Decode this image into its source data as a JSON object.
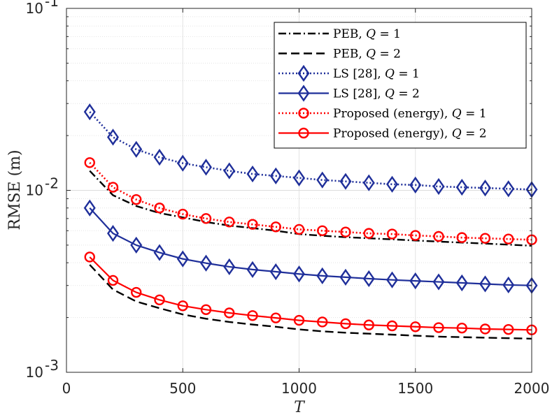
{
  "chart_data": {
    "type": "line",
    "yscale": "log",
    "xlabel": "T",
    "ylabel": "RMSE (m)",
    "xlim": [
      0,
      2000
    ],
    "ylim": [
      0.001,
      0.1
    ],
    "grid": true,
    "legend_position": "top-right",
    "x_ticks": [
      {
        "value": 0,
        "label": "0"
      },
      {
        "value": 500,
        "label": "500"
      },
      {
        "value": 1000,
        "label": "1000"
      },
      {
        "value": 1500,
        "label": "1500"
      },
      {
        "value": 2000,
        "label": "2000"
      }
    ],
    "y_ticks": [
      {
        "value": 0.001,
        "base": "10",
        "exp": "-3"
      },
      {
        "value": 0.01,
        "base": "10",
        "exp": "-2"
      },
      {
        "value": 0.1,
        "base": "10",
        "exp": "-1"
      }
    ],
    "x": [
      100,
      200,
      300,
      400,
      500,
      600,
      700,
      800,
      900,
      1000,
      1100,
      1200,
      1300,
      1400,
      1500,
      1600,
      1700,
      1800,
      1900,
      2000
    ],
    "series": [
      {
        "name": "PEB, Q = 1",
        "label_main": "PEB, ",
        "label_q": "Q",
        "label_tail": " = 1",
        "color": "#000000",
        "dash": "11,4,2,4",
        "width": 2.4,
        "marker": "none",
        "values": [
          0.0128,
          0.0094,
          0.0082,
          0.0075,
          0.0071,
          0.0067,
          0.0064,
          0.0062,
          0.006,
          0.00575,
          0.00563,
          0.00553,
          0.00545,
          0.00538,
          0.0053,
          0.00523,
          0.00516,
          0.0051,
          0.00503,
          0.00496
        ]
      },
      {
        "name": "PEB, Q = 2",
        "label_main": "PEB, ",
        "label_q": "Q",
        "label_tail": " = 2",
        "color": "#000000",
        "dash": "12,6",
        "width": 2.4,
        "marker": "none",
        "values": [
          0.0039,
          0.00285,
          0.00245,
          0.00225,
          0.00208,
          0.00197,
          0.00189,
          0.00183,
          0.00178,
          0.00172,
          0.00168,
          0.00165,
          0.00163,
          0.00161,
          0.00159,
          0.00157,
          0.00156,
          0.00155,
          0.00154,
          0.00153
        ]
      },
      {
        "name": "LS [28], Q = 1",
        "label_main": "LS [28], ",
        "label_q": "Q",
        "label_tail": " = 1",
        "color": "#1f2f9a",
        "dash": "2,3",
        "width": 2.6,
        "marker": "diamond",
        "values": [
          0.027,
          0.0196,
          0.0168,
          0.0152,
          0.0141,
          0.0134,
          0.0128,
          0.0123,
          0.012,
          0.0117,
          0.0114,
          0.0112,
          0.011,
          0.0108,
          0.0107,
          0.0105,
          0.0104,
          0.0103,
          0.0102,
          0.0101
        ]
      },
      {
        "name": "LS [28], Q = 2",
        "label_main": "LS [28], ",
        "label_q": "Q",
        "label_tail": " = 2",
        "color": "#1f2f9a",
        "dash": "",
        "width": 2.2,
        "marker": "diamond",
        "values": [
          0.008,
          0.0058,
          0.005,
          0.00455,
          0.0042,
          0.00398,
          0.0038,
          0.00367,
          0.00357,
          0.00347,
          0.00339,
          0.00333,
          0.00327,
          0.00322,
          0.00318,
          0.00314,
          0.0031,
          0.00306,
          0.00302,
          0.003
        ]
      },
      {
        "name": "Proposed (energy), Q = 1",
        "label_main": "Proposed (energy), ",
        "label_q": "Q",
        "label_tail": " = 1",
        "color": "#ff0000",
        "dash": "2,3",
        "width": 2.6,
        "marker": "circle",
        "values": [
          0.0142,
          0.0104,
          0.0089,
          0.008,
          0.0074,
          0.007,
          0.0067,
          0.0065,
          0.0063,
          0.0061,
          0.006,
          0.0059,
          0.0058,
          0.00575,
          0.00565,
          0.00558,
          0.0055,
          0.00545,
          0.0054,
          0.00535
        ]
      },
      {
        "name": "Proposed (energy), Q = 2",
        "label_main": "Proposed (energy), ",
        "label_q": "Q",
        "label_tail": " = 2",
        "color": "#ff0000",
        "dash": "",
        "width": 2.2,
        "marker": "circle",
        "values": [
          0.0043,
          0.0032,
          0.00275,
          0.0025,
          0.00232,
          0.00221,
          0.00212,
          0.00205,
          0.00199,
          0.00193,
          0.00189,
          0.00185,
          0.00182,
          0.0018,
          0.00178,
          0.00176,
          0.00175,
          0.00173,
          0.00172,
          0.00171
        ]
      }
    ]
  }
}
